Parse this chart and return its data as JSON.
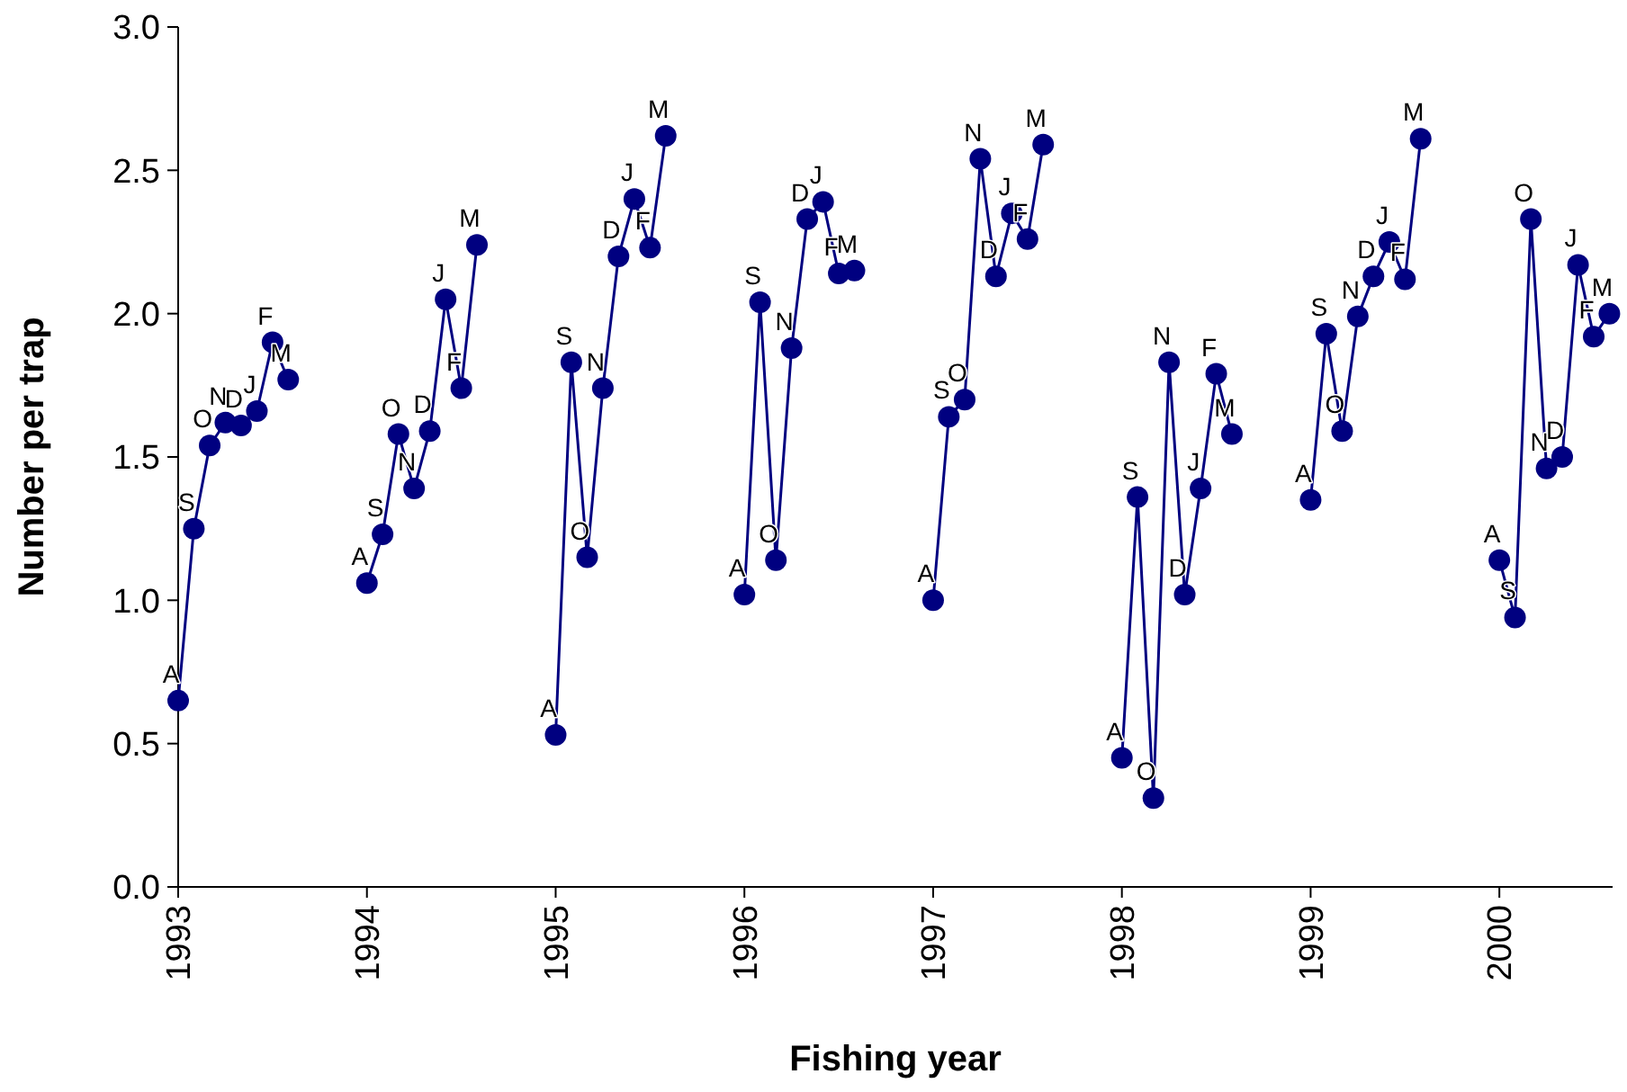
{
  "chart_data": {
    "type": "line",
    "xlabel": "Fishing year",
    "ylabel": "Number per trap",
    "xlim": [
      1993,
      2000.6
    ],
    "xticks": [
      1993,
      1994,
      1995,
      1996,
      1997,
      1998,
      1999,
      2000
    ],
    "ylim": [
      0,
      3
    ],
    "yticks": [
      {
        "value": 0,
        "label": "0.0"
      },
      {
        "value": 0.5,
        "label": "0.5"
      },
      {
        "value": 1,
        "label": "1.0"
      },
      {
        "value": 1.5,
        "label": "1.5"
      },
      {
        "value": 2,
        "label": "2.0"
      },
      {
        "value": 2.5,
        "label": "2.5"
      },
      {
        "value": 3,
        "label": "3.0"
      }
    ],
    "grid": false,
    "marker": "circle",
    "line_style": "solid",
    "series": [
      {
        "color": "#000080",
        "x": [
          1993,
          1993.083,
          1993.167,
          1993.25,
          1993.333,
          1993.417,
          1993.5,
          1993.583
        ],
        "values": [
          0.65,
          1.25,
          1.54,
          1.62,
          1.61,
          1.66,
          1.9,
          1.77
        ]
      },
      {
        "color": "#000080",
        "x": [
          1994,
          1994.083,
          1994.167,
          1994.25,
          1994.333,
          1994.417,
          1994.5,
          1994.583
        ],
        "values": [
          1.06,
          1.23,
          1.58,
          1.39,
          1.59,
          2.05,
          1.74,
          2.24
        ]
      },
      {
        "color": "#000080",
        "x": [
          1995,
          1995.083,
          1995.167,
          1995.25,
          1995.333,
          1995.417,
          1995.5,
          1995.583
        ],
        "values": [
          0.53,
          1.83,
          1.15,
          1.74,
          2.2,
          2.4,
          2.23,
          2.62
        ]
      },
      {
        "color": "#000080",
        "x": [
          1996,
          1996.083,
          1996.167,
          1996.25,
          1996.333,
          1996.417,
          1996.5,
          1996.583
        ],
        "values": [
          1.02,
          2.04,
          1.14,
          1.88,
          2.33,
          2.39,
          2.14,
          2.15
        ]
      },
      {
        "color": "#000080",
        "x": [
          1997,
          1997.083,
          1997.167,
          1997.25,
          1997.333,
          1997.417,
          1997.5,
          1997.583
        ],
        "values": [
          1.0,
          1.64,
          1.7,
          2.54,
          2.13,
          2.35,
          2.26,
          2.59
        ]
      },
      {
        "color": "#000080",
        "x": [
          1998,
          1998.083,
          1998.167,
          1998.25,
          1998.333,
          1998.417,
          1998.5,
          1998.583
        ],
        "values": [
          0.45,
          1.36,
          0.31,
          1.83,
          1.02,
          1.39,
          1.79,
          1.58
        ]
      },
      {
        "color": "#000080",
        "x": [
          1999,
          1999.083,
          1999.167,
          1999.25,
          1999.333,
          1999.417,
          1999.5,
          1999.583
        ],
        "values": [
          1.35,
          1.93,
          1.59,
          1.99,
          2.13,
          2.25,
          2.12,
          2.61
        ]
      },
      {
        "color": "#000080",
        "x": [
          2000,
          2000.083,
          2000.167,
          2000.25,
          2000.333,
          2000.417,
          2000.5,
          2000.583
        ],
        "values": [
          1.14,
          0.94,
          2.33,
          1.46,
          1.5,
          2.17,
          1.92,
          2.0
        ]
      }
    ],
    "annotations": [
      {
        "text": "A",
        "x": 1993,
        "y": 0.65
      },
      {
        "text": "S",
        "x": 1993.083,
        "y": 1.25
      },
      {
        "text": "O",
        "x": 1993.167,
        "y": 1.54
      },
      {
        "text": "N",
        "x": 1993.25,
        "y": 1.62
      },
      {
        "text": "D",
        "x": 1993.333,
        "y": 1.61
      },
      {
        "text": "J",
        "x": 1993.417,
        "y": 1.66
      },
      {
        "text": "F",
        "x": 1993.5,
        "y": 1.9
      },
      {
        "text": "M",
        "x": 1993.583,
        "y": 1.77
      },
      {
        "text": "A",
        "x": 1994,
        "y": 1.06
      },
      {
        "text": "S",
        "x": 1994.083,
        "y": 1.23
      },
      {
        "text": "O",
        "x": 1994.167,
        "y": 1.58
      },
      {
        "text": "N",
        "x": 1994.25,
        "y": 1.39
      },
      {
        "text": "D",
        "x": 1994.333,
        "y": 1.59
      },
      {
        "text": "J",
        "x": 1994.417,
        "y": 2.05
      },
      {
        "text": "F",
        "x": 1994.5,
        "y": 1.74
      },
      {
        "text": "M",
        "x": 1994.583,
        "y": 2.24
      },
      {
        "text": "A",
        "x": 1995,
        "y": 0.53
      },
      {
        "text": "S",
        "x": 1995.083,
        "y": 1.83
      },
      {
        "text": "O",
        "x": 1995.167,
        "y": 1.15
      },
      {
        "text": "N",
        "x": 1995.25,
        "y": 1.74
      },
      {
        "text": "D",
        "x": 1995.333,
        "y": 2.2
      },
      {
        "text": "J",
        "x": 1995.417,
        "y": 2.4
      },
      {
        "text": "F",
        "x": 1995.5,
        "y": 2.23
      },
      {
        "text": "M",
        "x": 1995.583,
        "y": 2.62
      },
      {
        "text": "A",
        "x": 1996,
        "y": 1.02
      },
      {
        "text": "S",
        "x": 1996.083,
        "y": 2.04
      },
      {
        "text": "O",
        "x": 1996.167,
        "y": 1.14
      },
      {
        "text": "N",
        "x": 1996.25,
        "y": 1.88
      },
      {
        "text": "D",
        "x": 1996.333,
        "y": 2.33
      },
      {
        "text": "J",
        "x": 1996.417,
        "y": 2.39
      },
      {
        "text": "F",
        "x": 1996.5,
        "y": 2.14
      },
      {
        "text": "M",
        "x": 1996.583,
        "y": 2.15
      },
      {
        "text": "A",
        "x": 1997,
        "y": 1.0
      },
      {
        "text": "S",
        "x": 1997.083,
        "y": 1.64
      },
      {
        "text": "O",
        "x": 1997.167,
        "y": 1.7
      },
      {
        "text": "N",
        "x": 1997.25,
        "y": 2.54
      },
      {
        "text": "D",
        "x": 1997.333,
        "y": 2.13
      },
      {
        "text": "J",
        "x": 1997.417,
        "y": 2.35
      },
      {
        "text": "F",
        "x": 1997.5,
        "y": 2.26
      },
      {
        "text": "M",
        "x": 1997.583,
        "y": 2.59
      },
      {
        "text": "A",
        "x": 1998,
        "y": 0.45
      },
      {
        "text": "S",
        "x": 1998.083,
        "y": 1.36
      },
      {
        "text": "O",
        "x": 1998.167,
        "y": 0.31
      },
      {
        "text": "N",
        "x": 1998.25,
        "y": 1.83
      },
      {
        "text": "D",
        "x": 1998.333,
        "y": 1.02
      },
      {
        "text": "J",
        "x": 1998.417,
        "y": 1.39
      },
      {
        "text": "F",
        "x": 1998.5,
        "y": 1.79
      },
      {
        "text": "M",
        "x": 1998.583,
        "y": 1.58
      },
      {
        "text": "A",
        "x": 1999,
        "y": 1.35
      },
      {
        "text": "S",
        "x": 1999.083,
        "y": 1.93
      },
      {
        "text": "O",
        "x": 1999.167,
        "y": 1.59
      },
      {
        "text": "N",
        "x": 1999.25,
        "y": 1.99
      },
      {
        "text": "D",
        "x": 1999.333,
        "y": 2.13
      },
      {
        "text": "J",
        "x": 1999.417,
        "y": 2.25
      },
      {
        "text": "F",
        "x": 1999.5,
        "y": 2.12
      },
      {
        "text": "M",
        "x": 1999.583,
        "y": 2.61
      },
      {
        "text": "A",
        "x": 2000,
        "y": 1.14
      },
      {
        "text": "S",
        "x": 2000.083,
        "y": 0.94
      },
      {
        "text": "O",
        "x": 2000.167,
        "y": 2.33
      },
      {
        "text": "N",
        "x": 2000.25,
        "y": 1.46
      },
      {
        "text": "D",
        "x": 2000.333,
        "y": 1.5
      },
      {
        "text": "J",
        "x": 2000.417,
        "y": 2.17
      },
      {
        "text": "F",
        "x": 2000.5,
        "y": 1.92
      },
      {
        "text": "M",
        "x": 2000.583,
        "y": 2.0
      }
    ]
  }
}
